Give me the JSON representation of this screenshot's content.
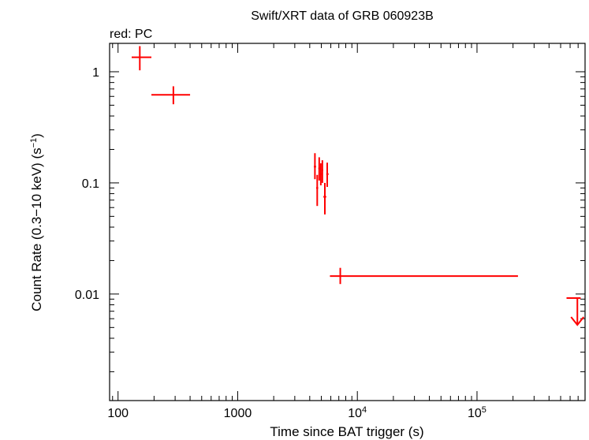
{
  "chart_data": {
    "type": "scatter",
    "title": "Swift/XRT data of GRB 060923B",
    "subtitle": "red: PC",
    "xlabel": "Time since BAT trigger (s)",
    "ylabel": "Count Rate (0.3−10 keV) (s⁻¹)",
    "xscale": "log",
    "yscale": "log",
    "xlim": [
      85,
      800000
    ],
    "ylim": [
      0.0011,
      1.8
    ],
    "x_tick_labels": [
      {
        "value": 100,
        "base": "100",
        "exp": ""
      },
      {
        "value": 1000,
        "base": "1000",
        "exp": ""
      },
      {
        "value": 10000,
        "base": "10",
        "exp": "4"
      },
      {
        "value": 100000,
        "base": "10",
        "exp": "5"
      }
    ],
    "y_tick_labels": [
      {
        "value": 1,
        "label": "1"
      },
      {
        "value": 0.1,
        "label": "0.1"
      },
      {
        "value": 0.01,
        "label": "0.01"
      }
    ],
    "color": "#ff0000",
    "series": [
      {
        "name": "PC",
        "points": [
          {
            "x": 152,
            "xlo": 130,
            "xhi": 190,
            "y": 1.35,
            "ylo": 1.03,
            "yhi": 1.7
          },
          {
            "x": 290,
            "xlo": 190,
            "xhi": 400,
            "y": 0.62,
            "ylo": 0.51,
            "yhi": 0.74
          },
          {
            "x": 4420,
            "xlo": 4330,
            "xhi": 4520,
            "y": 0.14,
            "ylo": 0.108,
            "yhi": 0.185
          },
          {
            "x": 4620,
            "xlo": 4530,
            "xhi": 4710,
            "y": 0.09,
            "ylo": 0.062,
            "yhi": 0.118
          },
          {
            "x": 4800,
            "xlo": 4720,
            "xhi": 4880,
            "y": 0.135,
            "ylo": 0.105,
            "yhi": 0.17
          },
          {
            "x": 4950,
            "xlo": 4880,
            "xhi": 5020,
            "y": 0.12,
            "ylo": 0.095,
            "yhi": 0.15
          },
          {
            "x": 5100,
            "xlo": 5030,
            "xhi": 5180,
            "y": 0.13,
            "ylo": 0.1,
            "yhi": 0.16
          },
          {
            "x": 5350,
            "xlo": 5200,
            "xhi": 5500,
            "y": 0.075,
            "ylo": 0.052,
            "yhi": 0.1
          },
          {
            "x": 5600,
            "xlo": 5500,
            "xhi": 5750,
            "y": 0.12,
            "ylo": 0.092,
            "yhi": 0.152
          },
          {
            "x": 7200,
            "xlo": 5900,
            "xhi": 220000,
            "y": 0.0145,
            "ylo": 0.0123,
            "yhi": 0.0172
          }
        ],
        "upper_limits": [
          {
            "x": 690000,
            "xlo": 560000,
            "xhi": 735000,
            "y": 0.0092
          }
        ]
      }
    ],
    "grid": false,
    "legend": "none"
  }
}
